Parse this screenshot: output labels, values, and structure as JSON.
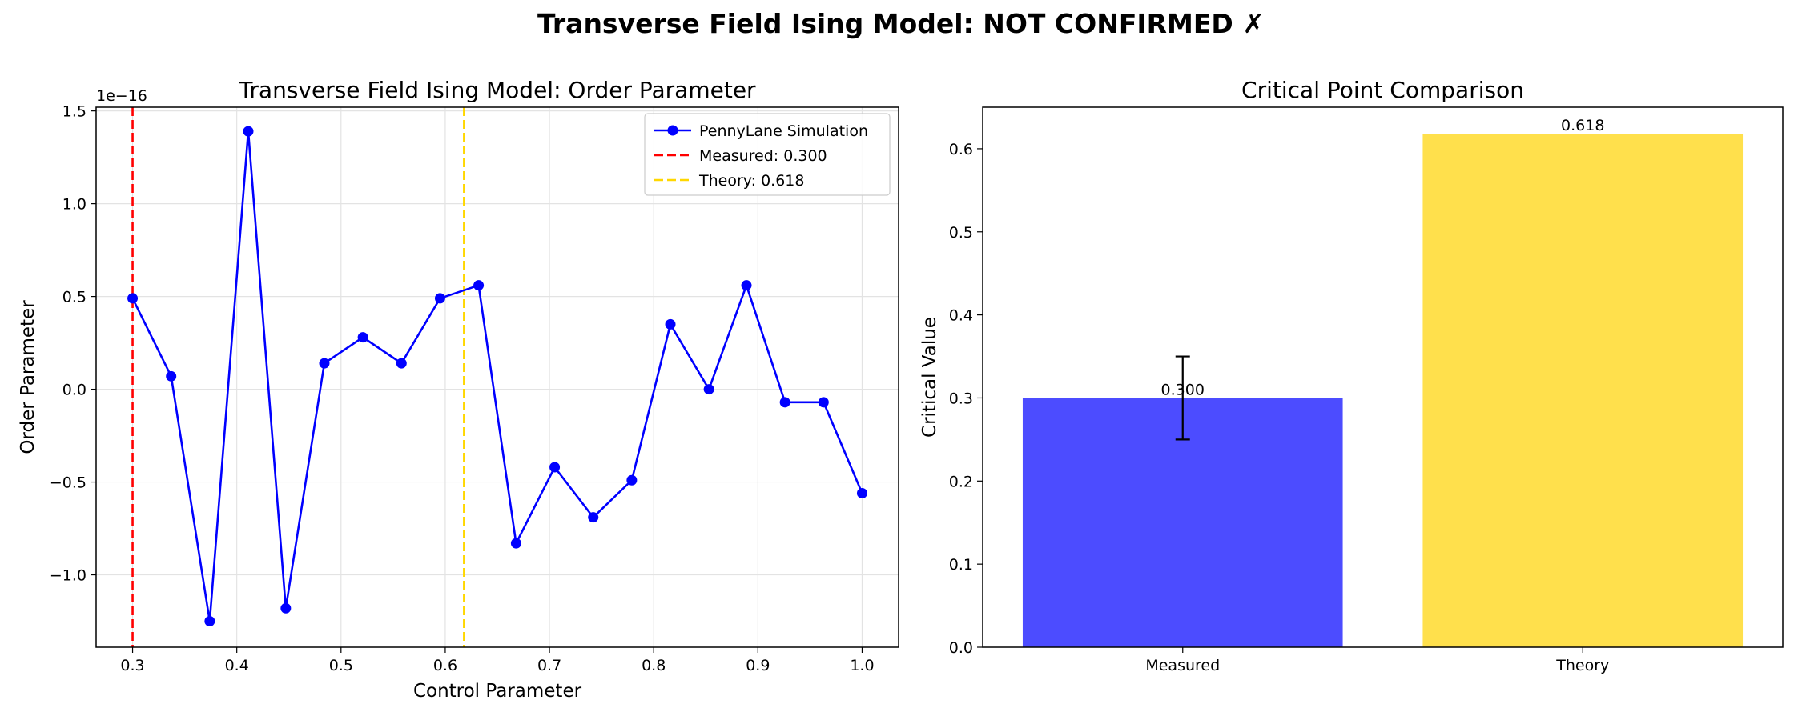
{
  "figure": {
    "suptitle": "Transverse Field Ising Model: NOT CONFIRMED ✗"
  },
  "colors": {
    "line": "#0000ff",
    "measured": "#ff0000",
    "theory": "#ffd700",
    "bar_measured": "#4c4cff",
    "bar_theory": "#ffe04c"
  },
  "chart_data": [
    {
      "type": "line",
      "title": "Transverse Field Ising Model: Order Parameter",
      "xlabel": "Control Parameter",
      "ylabel": "Order Parameter",
      "y_offset_label": "1e−16",
      "xlim": [
        0.265,
        1.035
      ],
      "ylim": [
        -1.39,
        1.52
      ],
      "xticks": [
        0.3,
        0.4,
        0.5,
        0.6,
        0.7,
        0.8,
        0.9,
        1.0
      ],
      "xtick_labels": [
        "0.3",
        "0.4",
        "0.5",
        "0.6",
        "0.7",
        "0.8",
        "0.9",
        "1.0"
      ],
      "yticks": [
        -1.0,
        -0.5,
        0.0,
        0.5,
        1.0,
        1.5
      ],
      "ytick_labels": [
        "−1.0",
        "−0.5",
        "0.0",
        "0.5",
        "1.0",
        "1.5"
      ],
      "grid": true,
      "legend_position": "top-right",
      "series": [
        {
          "name": "PennyLane Simulation",
          "x": [
            0.3,
            0.337,
            0.374,
            0.411,
            0.447,
            0.484,
            0.521,
            0.558,
            0.595,
            0.632,
            0.668,
            0.705,
            0.742,
            0.779,
            0.816,
            0.853,
            0.889,
            0.926,
            0.963,
            1.0
          ],
          "y": [
            0.49,
            0.07,
            -1.25,
            1.39,
            -1.18,
            0.14,
            0.28,
            0.14,
            0.49,
            0.56,
            -0.83,
            -0.42,
            -0.69,
            -0.49,
            0.35,
            0.0,
            0.56,
            -0.07,
            -0.07,
            -0.56
          ]
        }
      ],
      "vlines": [
        {
          "name": "Measured: 0.300",
          "x": 0.3,
          "style": "dashed"
        },
        {
          "name": "Theory: 0.618",
          "x": 0.618,
          "style": "dashed"
        }
      ]
    },
    {
      "type": "bar",
      "title": "Critical Point Comparison",
      "xlabel": "",
      "ylabel": "Critical Value",
      "categories": [
        "Measured",
        "Theory"
      ],
      "values": [
        0.3,
        0.618
      ],
      "value_labels": [
        "0.300",
        "0.618"
      ],
      "error": [
        0.05,
        0
      ],
      "ylim": [
        0,
        0.65
      ],
      "yticks": [
        0.0,
        0.1,
        0.2,
        0.3,
        0.4,
        0.5,
        0.6
      ],
      "ytick_labels": [
        "0.0",
        "0.1",
        "0.2",
        "0.3",
        "0.4",
        "0.5",
        "0.6"
      ],
      "grid": false
    }
  ]
}
